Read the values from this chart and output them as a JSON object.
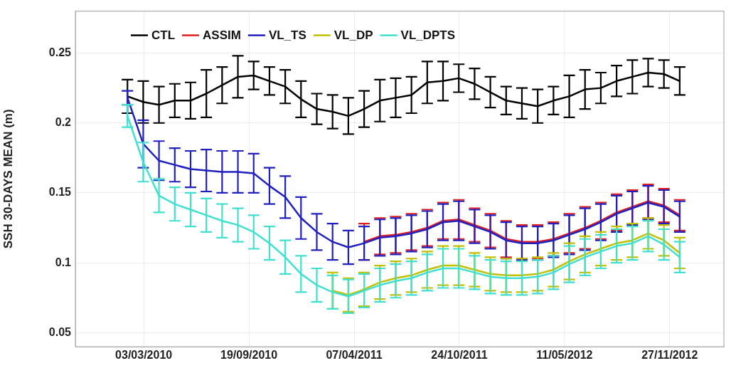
{
  "chart_data": {
    "type": "line",
    "ylabel": "SSH 30-DAYS MEAN (m)",
    "x": [
      "2010-01-31",
      "2010-03-02",
      "2010-04-01",
      "2010-05-01",
      "2010-05-31",
      "2010-06-30",
      "2010-07-30",
      "2010-08-29",
      "2010-09-28",
      "2010-10-28",
      "2010-11-27",
      "2010-12-27",
      "2011-01-26",
      "2011-02-25",
      "2011-03-27",
      "2011-04-26",
      "2011-05-26",
      "2011-06-25",
      "2011-07-25",
      "2011-08-24",
      "2011-09-23",
      "2011-10-23",
      "2011-11-22",
      "2011-12-22",
      "2012-01-21",
      "2012-02-20",
      "2012-03-21",
      "2012-04-20",
      "2012-05-20",
      "2012-06-19",
      "2012-07-19",
      "2012-08-18",
      "2012-09-17",
      "2012-10-17",
      "2012-11-16",
      "2012-12-16"
    ],
    "series": [
      {
        "name": "CTL",
        "color": "#000000",
        "values": [
          0.219,
          0.215,
          0.213,
          0.216,
          0.216,
          0.221,
          0.227,
          0.233,
          0.234,
          0.23,
          0.226,
          0.217,
          0.21,
          0.208,
          0.205,
          0.21,
          0.216,
          0.218,
          0.22,
          0.229,
          0.23,
          0.232,
          0.228,
          0.222,
          0.216,
          0.214,
          0.212,
          0.216,
          0.219,
          0.224,
          0.225,
          0.23,
          0.233,
          0.236,
          0.235,
          0.23
        ],
        "errors": [
          0.012,
          0.015,
          0.013,
          0.012,
          0.013,
          0.017,
          0.013,
          0.015,
          0.01,
          0.01,
          0.012,
          0.013,
          0.011,
          0.012,
          0.013,
          0.013,
          0.015,
          0.014,
          0.013,
          0.015,
          0.014,
          0.01,
          0.011,
          0.011,
          0.01,
          0.011,
          0.012,
          0.01,
          0.015,
          0.014,
          0.011,
          0.011,
          0.012,
          0.01,
          0.01,
          0.01
        ]
      },
      {
        "name": "ASSIM",
        "color": "#e02020",
        "values": [
          null,
          null,
          null,
          null,
          null,
          null,
          null,
          null,
          null,
          null,
          null,
          null,
          null,
          null,
          null,
          0.115,
          0.119,
          0.12,
          0.122,
          0.125,
          0.13,
          0.131,
          0.127,
          0.123,
          0.117,
          0.115,
          0.115,
          0.117,
          0.121,
          0.125,
          0.13,
          0.136,
          0.14,
          0.144,
          0.141,
          0.134
        ],
        "errors": [
          null,
          null,
          null,
          null,
          null,
          null,
          null,
          null,
          null,
          null,
          null,
          null,
          null,
          null,
          null,
          0.013,
          0.013,
          0.013,
          0.013,
          0.013,
          0.013,
          0.014,
          0.012,
          0.012,
          0.013,
          0.012,
          0.012,
          0.012,
          0.014,
          0.015,
          0.013,
          0.013,
          0.012,
          0.012,
          0.012,
          0.011
        ]
      },
      {
        "name": "VL_TS",
        "color": "#2020c0",
        "values": [
          0.218,
          0.185,
          0.173,
          0.17,
          0.167,
          0.166,
          0.165,
          0.165,
          0.164,
          0.155,
          0.147,
          0.132,
          0.122,
          0.115,
          0.111,
          0.114,
          0.118,
          0.119,
          0.121,
          0.124,
          0.129,
          0.13,
          0.126,
          0.122,
          0.116,
          0.114,
          0.114,
          0.116,
          0.12,
          0.124,
          0.129,
          0.135,
          0.139,
          0.143,
          0.14,
          0.133
        ],
        "errors": [
          0.005,
          0.017,
          0.014,
          0.012,
          0.013,
          0.015,
          0.015,
          0.015,
          0.014,
          0.013,
          0.015,
          0.015,
          0.013,
          0.013,
          0.012,
          0.012,
          0.013,
          0.013,
          0.013,
          0.013,
          0.013,
          0.014,
          0.012,
          0.012,
          0.013,
          0.012,
          0.012,
          0.012,
          0.014,
          0.015,
          0.013,
          0.013,
          0.012,
          0.012,
          0.012,
          0.011
        ]
      },
      {
        "name": "VL_DP",
        "color": "#c0c000",
        "values": [
          null,
          null,
          null,
          null,
          null,
          null,
          null,
          null,
          null,
          null,
          null,
          null,
          null,
          0.08,
          0.077,
          0.081,
          0.086,
          0.089,
          0.091,
          0.095,
          0.098,
          0.098,
          0.095,
          0.092,
          0.091,
          0.091,
          0.092,
          0.095,
          0.101,
          0.106,
          0.11,
          0.114,
          0.116,
          0.121,
          0.116,
          0.107
        ],
        "errors": [
          null,
          null,
          null,
          null,
          null,
          null,
          null,
          null,
          null,
          null,
          null,
          null,
          null,
          0.013,
          0.012,
          0.012,
          0.012,
          0.012,
          0.012,
          0.013,
          0.014,
          0.014,
          0.012,
          0.012,
          0.012,
          0.012,
          0.012,
          0.012,
          0.013,
          0.013,
          0.012,
          0.012,
          0.012,
          0.011,
          0.011,
          0.011
        ]
      },
      {
        "name": "VL_DPTS",
        "color": "#40e0d0",
        "values": [
          0.205,
          0.172,
          0.148,
          0.142,
          0.138,
          0.134,
          0.13,
          0.127,
          0.122,
          0.114,
          0.104,
          0.092,
          0.084,
          0.079,
          0.076,
          0.08,
          0.084,
          0.087,
          0.089,
          0.093,
          0.096,
          0.096,
          0.093,
          0.09,
          0.089,
          0.089,
          0.09,
          0.093,
          0.099,
          0.104,
          0.108,
          0.112,
          0.114,
          0.119,
          0.113,
          0.104
        ],
        "errors": [
          0.008,
          0.014,
          0.012,
          0.012,
          0.012,
          0.012,
          0.012,
          0.012,
          0.012,
          0.012,
          0.012,
          0.013,
          0.012,
          0.012,
          0.012,
          0.012,
          0.012,
          0.012,
          0.012,
          0.013,
          0.014,
          0.014,
          0.012,
          0.012,
          0.012,
          0.012,
          0.012,
          0.012,
          0.013,
          0.013,
          0.012,
          0.012,
          0.012,
          0.011,
          0.011,
          0.011
        ]
      }
    ],
    "xlim": [
      "2009-10-24",
      "2013-03-10"
    ],
    "xticks": [
      {
        "value": "2010-03-03",
        "label": "03/03/2010"
      },
      {
        "value": "2010-09-19",
        "label": "19/09/2010"
      },
      {
        "value": "2011-04-07",
        "label": "07/04/2011"
      },
      {
        "value": "2011-10-24",
        "label": "24/10/2011"
      },
      {
        "value": "2012-05-11",
        "label": "11/05/2012"
      },
      {
        "value": "2012-11-27",
        "label": "27/11/2012"
      }
    ],
    "ylim": [
      0.04,
      0.28
    ],
    "yticks": [
      0.05,
      0.1,
      0.15,
      0.2,
      0.25
    ],
    "grid": true,
    "legend": "top left",
    "marker": "none",
    "line_style": "solid"
  }
}
